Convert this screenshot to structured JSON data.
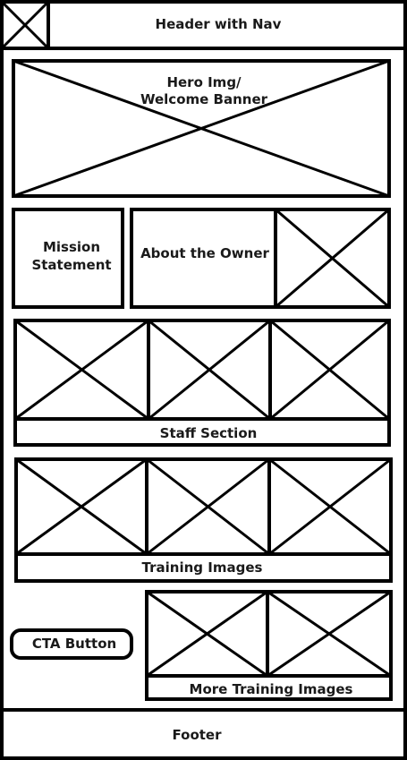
{
  "header": {
    "label": "Header with Nav",
    "logo_icon": "image-placeholder-icon"
  },
  "hero": {
    "label_line1": "Hero Img/",
    "label_line2": "Welcome Banner"
  },
  "mission": {
    "label_line1": "Mission",
    "label_line2": "Statement"
  },
  "about": {
    "label": "About the Owner",
    "image_icon": "image-placeholder-icon"
  },
  "staff": {
    "label": "Staff Section",
    "image_count": 3
  },
  "training": {
    "label": "Training Images",
    "image_count": 3
  },
  "cta": {
    "label": "CTA Button"
  },
  "more_training": {
    "label": "More Training Images",
    "image_count": 2
  },
  "footer": {
    "label": "Footer"
  }
}
